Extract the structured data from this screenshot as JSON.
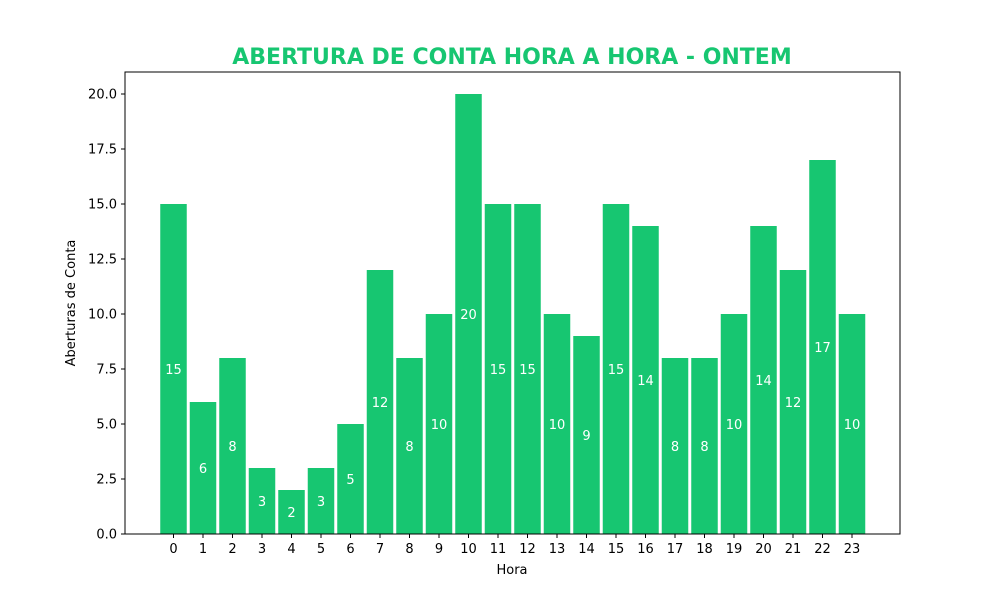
{
  "colors": {
    "bar": "#17c671",
    "title": "#17c671",
    "bar_label": "#ffffff",
    "axis": "#000000",
    "background": "#ffffff"
  },
  "chart_data": {
    "type": "bar",
    "title": "ABERTURA DE CONTA HORA A HORA - ONTEM",
    "xlabel": "Hora",
    "ylabel": "Aberturas de Conta",
    "categories": [
      "0",
      "1",
      "2",
      "3",
      "4",
      "5",
      "6",
      "7",
      "8",
      "9",
      "10",
      "11",
      "12",
      "13",
      "14",
      "15",
      "16",
      "17",
      "18",
      "19",
      "20",
      "21",
      "22",
      "23"
    ],
    "values": [
      15,
      6,
      8,
      3,
      2,
      3,
      5,
      12,
      8,
      10,
      20,
      15,
      15,
      10,
      9,
      15,
      14,
      8,
      8,
      10,
      14,
      12,
      17,
      10
    ],
    "ylim": [
      0,
      21
    ],
    "yticks": [
      0,
      2.5,
      5,
      7.5,
      10,
      12.5,
      15,
      17.5,
      20
    ],
    "ytick_labels": [
      "0.0",
      "2.5",
      "5.0",
      "7.5",
      "10.0",
      "12.5",
      "15.0",
      "17.5",
      "20.0"
    ],
    "grid": false,
    "legend": "none"
  }
}
